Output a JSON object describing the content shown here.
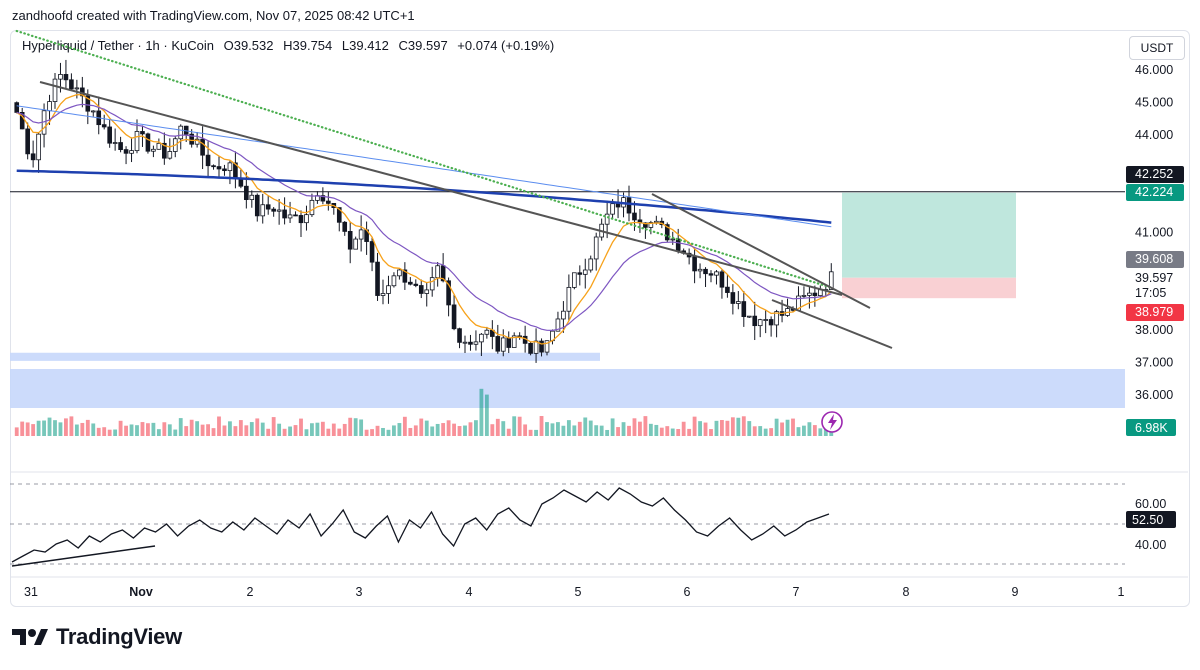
{
  "header": {
    "attribution": "zandhoofd created with TradingView.com, Nov 07, 2025 08:42 UTC+1"
  },
  "legend": {
    "symbol": "Hyperliquid / Tether · 1h · KuCoin",
    "open_label": "O",
    "open": "39.532",
    "high_label": "H",
    "high": "39.754",
    "low_label": "L",
    "low": "39.412",
    "close_label": "C",
    "close": "39.597",
    "change": "+0.074 (+0.19%)"
  },
  "currency_button": "USDT",
  "footer": {
    "brand": "TradingView"
  },
  "colors": {
    "up": "#089981",
    "down": "#f23645",
    "ema_orange": "#f7a21b",
    "ema_purple": "#7e57c2",
    "ma_blue_dark": "#1e40af",
    "ma_blue_light": "#5b8def",
    "ma_green_dotted": "#4caf50",
    "profit_zone": "#bfe7dd",
    "loss_zone": "#f9d0d3",
    "demand_zone": "#c7d7fb"
  },
  "chart_data": {
    "type": "candlestick",
    "symbol": "Hyperliquid / Tether",
    "timeframe": "1h",
    "price_axis": {
      "ticks": [
        "46.000",
        "45.000",
        "44.000",
        "41.000",
        "38.000",
        "37.000",
        "36.000"
      ],
      "range": [
        35.3,
        46.7
      ]
    },
    "price_labels": [
      {
        "value": "42.252",
        "style": "dark"
      },
      {
        "value": "42.224",
        "style": "green"
      },
      {
        "value": "39.608",
        "style": "gray"
      },
      {
        "value": "39.597",
        "style": "plain"
      },
      {
        "value": "17:05",
        "style": "plain"
      },
      {
        "value": "38.979",
        "style": "red"
      }
    ],
    "volume_label": "6.98K",
    "time_axis": [
      "31",
      "Nov",
      "2",
      "3",
      "4",
      "5",
      "6",
      "7",
      "8",
      "9",
      "1"
    ],
    "horizontal_line": 42.252,
    "position": {
      "entry": 39.608,
      "target": 42.224,
      "stop": 38.979
    },
    "demand_zones": [
      {
        "from": 35.6,
        "to": 36.8
      },
      {
        "from": 37.05,
        "to": 37.3
      }
    ],
    "close_path": [
      44.7,
      43.2,
      45.1,
      45.9,
      45.3,
      44.8,
      44.0,
      43.5,
      43.9,
      43.6,
      43.4,
      44.3,
      43.6,
      43.0,
      43.1,
      42.4,
      41.6,
      41.8,
      41.4,
      41.5,
      42.4,
      41.7,
      40.5,
      41.2,
      38.9,
      39.8,
      39.6,
      38.8,
      39.9,
      38.0,
      37.6,
      38.0,
      37.4,
      37.9,
      37.5,
      37.3,
      38.5,
      39.6,
      40.3,
      41.4,
      42.0,
      41.6,
      41.3,
      41.0,
      40.6,
      40.0,
      39.8,
      39.4,
      38.7,
      38.3,
      38.4,
      38.5,
      38.9,
      39.2,
      39.6
    ],
    "rsi": {
      "ticks": [
        "60.00",
        "40.00"
      ],
      "value": "52.50",
      "levels": [
        70,
        50,
        30
      ],
      "values": [
        31,
        34,
        37,
        36,
        40,
        42,
        38,
        44,
        41,
        45,
        47,
        43,
        48,
        46,
        50,
        44,
        49,
        52,
        48,
        46,
        51,
        47,
        53,
        49,
        45,
        52,
        48,
        55,
        44,
        50,
        57,
        46,
        43,
        49,
        54,
        41,
        52,
        48,
        56,
        45,
        39,
        50,
        53,
        47,
        55,
        58,
        52,
        49,
        60,
        63,
        67,
        64,
        61,
        66,
        62,
        68,
        65,
        61,
        59,
        63,
        57,
        52,
        46,
        44,
        49,
        53,
        47,
        42,
        45,
        49,
        44,
        47,
        51,
        53,
        55
      ]
    },
    "indicator_lines": [
      "EMA 20",
      "EMA 50",
      "MA 200",
      "MA 200 slope",
      "MA dotted"
    ]
  }
}
